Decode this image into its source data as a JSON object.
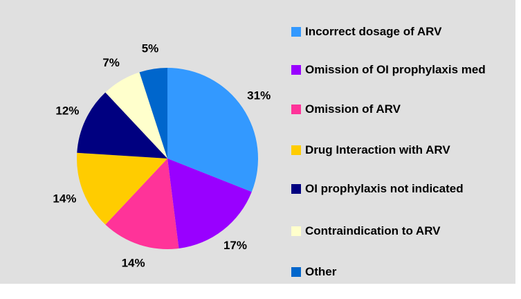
{
  "chart_data": {
    "type": "pie",
    "categories": [
      "Incorrect dosage of ARV",
      "Omission of OI prophylaxis med",
      "Omission of ARV",
      "Drug Interaction with ARV",
      "OI prophylaxis not indicated",
      "Contraindication to ARV",
      "Other"
    ],
    "values": [
      31,
      17,
      14,
      14,
      12,
      7,
      5
    ],
    "value_labels": [
      "31%",
      "17%",
      "14%",
      "14%",
      "12%",
      "7%",
      "5%"
    ],
    "colors": [
      "#3399ff",
      "#9900ff",
      "#ff3399",
      "#ffcc00",
      "#000080",
      "#ffffcc",
      "#0066cc"
    ],
    "legend": "right"
  }
}
